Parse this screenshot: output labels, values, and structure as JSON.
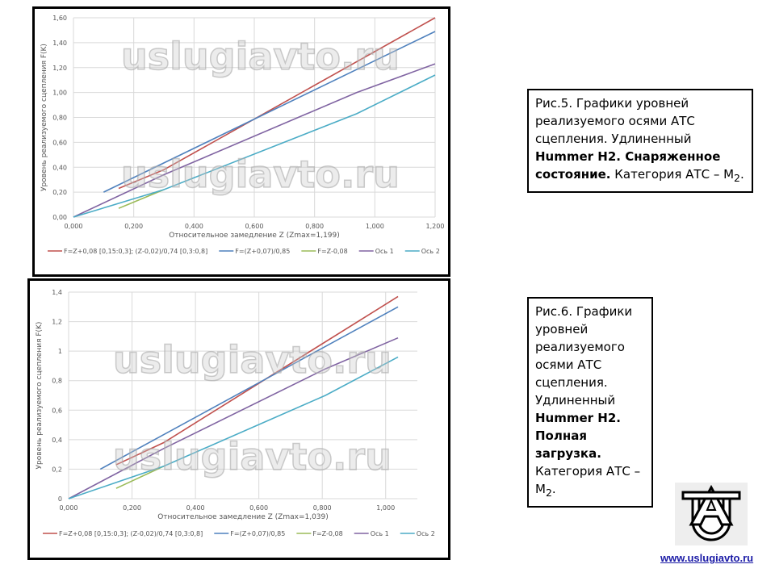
{
  "chart_data": [
    {
      "type": "line",
      "ylabel": "Уровень реализуемого сцепления F(K)",
      "xlabel": "Относительное замедление Z (Zmax=1,199)",
      "xlim": [
        0,
        1.2
      ],
      "ylim": [
        0,
        1.6
      ],
      "xticks": [
        "0,000",
        "0,200",
        "0,400",
        "0,600",
        "0,800",
        "1,000",
        "1,200"
      ],
      "yticks": [
        "0,00",
        "0,20",
        "0,40",
        "0,60",
        "0,80",
        "1,00",
        "1,20",
        "1,40",
        "1,60"
      ],
      "ystep": 0.2,
      "xstep": 0.2,
      "series": [
        {
          "name": "F=Z+0,08 [0,15:0,3]; (Z-0,02)/0,74 [0,3:0,8]",
          "color": "#c0504d",
          "points": [
            [
              0.15,
              0.23
            ],
            [
              0.3,
              0.38
            ],
            [
              1.2,
              1.6
            ]
          ]
        },
        {
          "name": "F=(Z+0,07)/0,85",
          "color": "#4f81bd",
          "points": [
            [
              0.1,
              0.2
            ],
            [
              1.2,
              1.49
            ]
          ]
        },
        {
          "name": "F=Z-0,08",
          "color": "#9bbb59",
          "points": [
            [
              0.15,
              0.07
            ],
            [
              0.3,
              0.22
            ]
          ]
        },
        {
          "name": "Ось 1",
          "color": "#8064a2",
          "points": [
            [
              0,
              0
            ],
            [
              0.3,
              0.34
            ],
            [
              0.94,
              1.0
            ],
            [
              1.2,
              1.23
            ]
          ]
        },
        {
          "name": "Ось 2",
          "color": "#4bacc6",
          "points": [
            [
              0,
              0
            ],
            [
              0.15,
              0.11
            ],
            [
              0.3,
              0.22
            ],
            [
              0.94,
              0.83
            ],
            [
              1.2,
              1.14
            ]
          ]
        }
      ]
    },
    {
      "type": "line",
      "ylabel": "Уровень реализуемого сцепления F(K)",
      "xlabel": "Относительное замедление Z (Zmax=1,039)",
      "xlim": [
        0,
        1.1
      ],
      "ylim": [
        0,
        1.4
      ],
      "xticks": [
        "0,000",
        "0,200",
        "0,400",
        "0,600",
        "0,800",
        "1,000"
      ],
      "yticks": [
        "0",
        "0,2",
        "0,4",
        "0,6",
        "0,8",
        "1",
        "1,2",
        "1,4"
      ],
      "ystep": 0.2,
      "xstep": 0.2,
      "series": [
        {
          "name": "F=Z+0,08 [0,15:0,3]; (Z-0,02)/0,74 [0,3:0,8]",
          "color": "#c0504d",
          "points": [
            [
              0.15,
              0.23
            ],
            [
              0.3,
              0.38
            ],
            [
              1.039,
              1.37
            ]
          ]
        },
        {
          "name": "F=(Z+0,07)/0,85",
          "color": "#4f81bd",
          "points": [
            [
              0.1,
              0.2
            ],
            [
              1.039,
              1.3
            ]
          ]
        },
        {
          "name": "F=Z-0,08",
          "color": "#9bbb59",
          "points": [
            [
              0.15,
              0.07
            ],
            [
              0.3,
              0.22
            ]
          ]
        },
        {
          "name": "Ось 1",
          "color": "#8064a2",
          "points": [
            [
              0,
              0
            ],
            [
              0.3,
              0.34
            ],
            [
              0.81,
              0.88
            ],
            [
              1.039,
              1.09
            ]
          ]
        },
        {
          "name": "Ось 2",
          "color": "#4bacc6",
          "points": [
            [
              0,
              0
            ],
            [
              0.15,
              0.11
            ],
            [
              0.3,
              0.22
            ],
            [
              0.81,
              0.7
            ],
            [
              1.039,
              0.96
            ]
          ]
        }
      ]
    }
  ],
  "captions": [
    {
      "p1": "Рис.5. Графики уровней реализуемого осями АТС сцепления. Удлиненный ",
      "b": "Hummer H2. Снаряженное состояние.",
      "p2": " Категория АТС – М",
      "sub": "2",
      "end": "."
    },
    {
      "p1": "Рис.6. Графики уровней реализуемого осями АТС сцепления. Удлиненный ",
      "b": "Hummer H2. Полная загрузка.",
      "p2": " Категория АТС – М",
      "sub": "2",
      "end": "."
    }
  ],
  "watermark": "uslugiavto.ru",
  "logo_text": "AU",
  "link": "www.uslugiavto.ru"
}
